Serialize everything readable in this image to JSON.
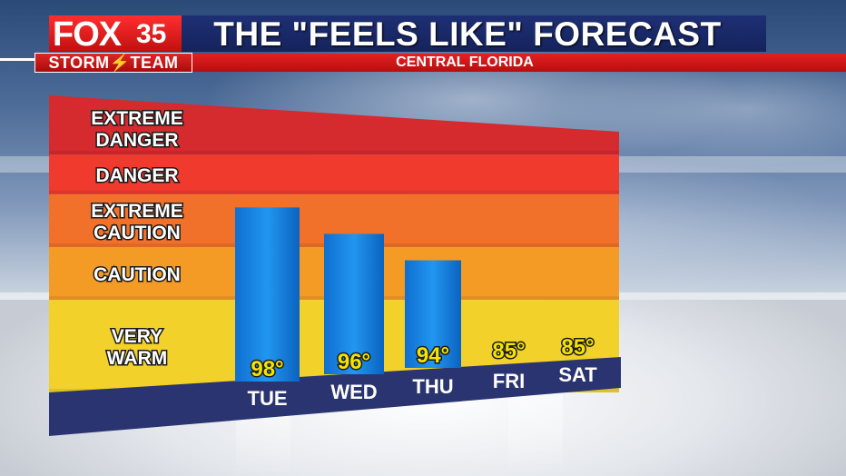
{
  "header": {
    "logo_brand": "FOX",
    "logo_number": "35",
    "storm_team": "STORM⚡TEAM",
    "title": "THE \"FEELS LIKE\" FORECAST",
    "subtitle": "CENTRAL FLORIDA"
  },
  "colors": {
    "title_bar": "#1e2f74",
    "logo_red": "#e51f1f",
    "bar_blue": "#1a8be8",
    "value_yellow": "#f5e300",
    "zone_extreme_danger": "#d52a2e",
    "zone_danger": "#ef3a2d",
    "zone_extreme_caution": "#f2712a",
    "zone_caution": "#f49b25",
    "zone_very_warm": "#f2d12a",
    "base_navy": "#2a3470"
  },
  "chart_data": {
    "type": "bar",
    "title": "THE \"FEELS LIKE\" FORECAST",
    "subtitle": "CENTRAL FLORIDA",
    "categories": [
      "TUE",
      "WED",
      "THU",
      "FRI",
      "SAT"
    ],
    "values": [
      98,
      96,
      94,
      85,
      85
    ],
    "value_labels": [
      "98°",
      "96°",
      "94°",
      "85°",
      "85°"
    ],
    "ylim": [
      84,
      106
    ],
    "zones": [
      {
        "label_lines": [
          "EXTREME",
          "DANGER"
        ],
        "from": 102,
        "to": 106
      },
      {
        "label_lines": [
          "DANGER"
        ],
        "from": 99,
        "to": 102
      },
      {
        "label_lines": [
          "EXTREME",
          "CAUTION"
        ],
        "from": 95,
        "to": 99
      },
      {
        "label_lines": [
          "CAUTION"
        ],
        "from": 91,
        "to": 95
      },
      {
        "label_lines": [
          "VERY",
          "WARM"
        ],
        "from": 84,
        "to": 91
      }
    ],
    "grid": false,
    "legend": "none"
  }
}
